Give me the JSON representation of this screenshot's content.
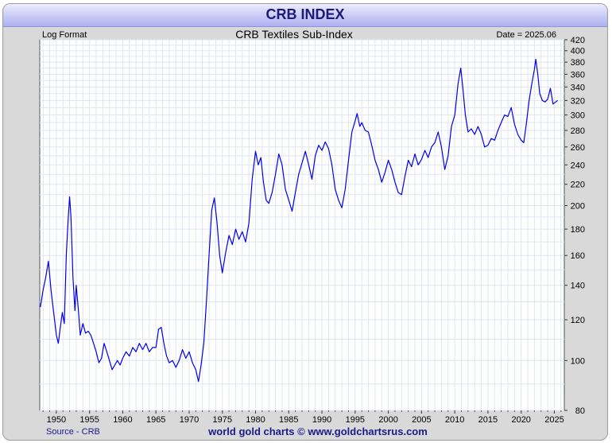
{
  "header": {
    "title": "CRB INDEX"
  },
  "chart_meta": {
    "format_label": "Log Format",
    "date_label": "Date = 2025.06",
    "source_label": "Source - CRB",
    "footer_credit": "world gold charts © www.goldchartsrus.com"
  },
  "colors": {
    "line": "#0000ee",
    "banner_text": "#1a1a7a",
    "footer_text": "#1a1a8a",
    "grid": "#dfe6f2",
    "frame": "#d9d9d9"
  },
  "chart_data": {
    "type": "line",
    "title": "CRB Textiles Sub-Index",
    "scale": "log",
    "grid": true,
    "xlim": [
      1947.5,
      2026.5
    ],
    "ylim": [
      80,
      420
    ],
    "x_ticks": [
      1950,
      1955,
      1960,
      1965,
      1970,
      1975,
      1980,
      1985,
      1990,
      1995,
      2000,
      2005,
      2010,
      2015,
      2020,
      2025
    ],
    "y_ticks": [
      80,
      100,
      120,
      140,
      160,
      180,
      200,
      220,
      240,
      260,
      280,
      300,
      320,
      340,
      360,
      380,
      400,
      420
    ],
    "series": [
      {
        "points": [
          [
            1947.6,
            127
          ],
          [
            1948.0,
            137
          ],
          [
            1948.4,
            145
          ],
          [
            1948.8,
            156
          ],
          [
            1949.2,
            137
          ],
          [
            1949.6,
            124
          ],
          [
            1950.0,
            112
          ],
          [
            1950.3,
            108
          ],
          [
            1950.6,
            116
          ],
          [
            1950.9,
            124
          ],
          [
            1951.2,
            118
          ],
          [
            1951.5,
            160
          ],
          [
            1951.8,
            190
          ],
          [
            1952.0,
            208
          ],
          [
            1952.2,
            190
          ],
          [
            1952.5,
            145
          ],
          [
            1952.8,
            125
          ],
          [
            1953.0,
            140
          ],
          [
            1953.3,
            126
          ],
          [
            1953.6,
            112
          ],
          [
            1954.0,
            118
          ],
          [
            1954.4,
            113
          ],
          [
            1954.8,
            114
          ],
          [
            1955.2,
            112
          ],
          [
            1955.6,
            108
          ],
          [
            1956.0,
            104
          ],
          [
            1956.4,
            99
          ],
          [
            1956.8,
            101
          ],
          [
            1957.2,
            108
          ],
          [
            1957.6,
            104
          ],
          [
            1958.0,
            100
          ],
          [
            1958.4,
            96
          ],
          [
            1958.8,
            98
          ],
          [
            1959.2,
            100
          ],
          [
            1959.6,
            98
          ],
          [
            1960.0,
            101
          ],
          [
            1960.5,
            104
          ],
          [
            1961.0,
            102
          ],
          [
            1961.5,
            106
          ],
          [
            1962.0,
            104
          ],
          [
            1962.5,
            108
          ],
          [
            1963.0,
            105
          ],
          [
            1963.5,
            108
          ],
          [
            1964.0,
            104
          ],
          [
            1964.5,
            106
          ],
          [
            1965.0,
            106
          ],
          [
            1965.4,
            115
          ],
          [
            1965.8,
            116
          ],
          [
            1966.2,
            108
          ],
          [
            1966.6,
            102
          ],
          [
            1967.0,
            99
          ],
          [
            1967.5,
            100
          ],
          [
            1968.0,
            97
          ],
          [
            1968.5,
            100
          ],
          [
            1969.0,
            105
          ],
          [
            1969.5,
            101
          ],
          [
            1970.0,
            104
          ],
          [
            1970.5,
            99
          ],
          [
            1971.0,
            96
          ],
          [
            1971.4,
            91
          ],
          [
            1971.8,
            98
          ],
          [
            1972.2,
            108
          ],
          [
            1972.6,
            130
          ],
          [
            1973.0,
            160
          ],
          [
            1973.4,
            196
          ],
          [
            1973.8,
            207
          ],
          [
            1974.2,
            185
          ],
          [
            1974.6,
            160
          ],
          [
            1975.0,
            148
          ],
          [
            1975.5,
            162
          ],
          [
            1976.0,
            175
          ],
          [
            1976.5,
            168
          ],
          [
            1977.0,
            180
          ],
          [
            1977.5,
            172
          ],
          [
            1978.0,
            178
          ],
          [
            1978.5,
            170
          ],
          [
            1979.0,
            185
          ],
          [
            1979.5,
            225
          ],
          [
            1980.0,
            255
          ],
          [
            1980.4,
            240
          ],
          [
            1980.8,
            248
          ],
          [
            1981.2,
            222
          ],
          [
            1981.6,
            205
          ],
          [
            1982.0,
            202
          ],
          [
            1982.5,
            212
          ],
          [
            1983.0,
            230
          ],
          [
            1983.5,
            252
          ],
          [
            1984.0,
            240
          ],
          [
            1984.5,
            215
          ],
          [
            1985.0,
            205
          ],
          [
            1985.5,
            195
          ],
          [
            1986.0,
            212
          ],
          [
            1986.5,
            230
          ],
          [
            1987.0,
            242
          ],
          [
            1987.5,
            255
          ],
          [
            1988.0,
            240
          ],
          [
            1988.5,
            225
          ],
          [
            1989.0,
            250
          ],
          [
            1989.5,
            262
          ],
          [
            1990.0,
            256
          ],
          [
            1990.5,
            266
          ],
          [
            1991.0,
            258
          ],
          [
            1991.5,
            240
          ],
          [
            1992.0,
            215
          ],
          [
            1992.5,
            205
          ],
          [
            1993.0,
            198
          ],
          [
            1993.5,
            215
          ],
          [
            1994.0,
            245
          ],
          [
            1994.5,
            278
          ],
          [
            1995.0,
            292
          ],
          [
            1995.3,
            302
          ],
          [
            1995.7,
            285
          ],
          [
            1996.0,
            290
          ],
          [
            1996.5,
            280
          ],
          [
            1997.0,
            278
          ],
          [
            1997.5,
            262
          ],
          [
            1998.0,
            245
          ],
          [
            1998.5,
            235
          ],
          [
            1999.0,
            222
          ],
          [
            1999.5,
            232
          ],
          [
            2000.0,
            245
          ],
          [
            2000.5,
            235
          ],
          [
            2001.0,
            222
          ],
          [
            2001.5,
            212
          ],
          [
            2002.0,
            210
          ],
          [
            2002.5,
            228
          ],
          [
            2003.0,
            245
          ],
          [
            2003.5,
            238
          ],
          [
            2004.0,
            252
          ],
          [
            2004.5,
            240
          ],
          [
            2005.0,
            246
          ],
          [
            2005.5,
            256
          ],
          [
            2006.0,
            248
          ],
          [
            2006.5,
            260
          ],
          [
            2007.0,
            265
          ],
          [
            2007.5,
            278
          ],
          [
            2008.0,
            260
          ],
          [
            2008.5,
            235
          ],
          [
            2009.0,
            250
          ],
          [
            2009.5,
            285
          ],
          [
            2010.0,
            300
          ],
          [
            2010.5,
            345
          ],
          [
            2010.9,
            370
          ],
          [
            2011.2,
            340
          ],
          [
            2011.6,
            300
          ],
          [
            2012.0,
            278
          ],
          [
            2012.5,
            282
          ],
          [
            2013.0,
            275
          ],
          [
            2013.5,
            285
          ],
          [
            2014.0,
            275
          ],
          [
            2014.5,
            260
          ],
          [
            2015.0,
            262
          ],
          [
            2015.5,
            270
          ],
          [
            2016.0,
            268
          ],
          [
            2016.5,
            280
          ],
          [
            2017.0,
            290
          ],
          [
            2017.5,
            300
          ],
          [
            2018.0,
            298
          ],
          [
            2018.5,
            310
          ],
          [
            2019.0,
            288
          ],
          [
            2019.5,
            275
          ],
          [
            2020.0,
            268
          ],
          [
            2020.4,
            265
          ],
          [
            2020.8,
            290
          ],
          [
            2021.2,
            320
          ],
          [
            2021.6,
            345
          ],
          [
            2022.0,
            368
          ],
          [
            2022.2,
            385
          ],
          [
            2022.5,
            360
          ],
          [
            2022.8,
            330
          ],
          [
            2023.2,
            320
          ],
          [
            2023.6,
            318
          ],
          [
            2024.0,
            322
          ],
          [
            2024.4,
            338
          ],
          [
            2024.8,
            315
          ],
          [
            2025.2,
            318
          ],
          [
            2025.5,
            320
          ]
        ]
      }
    ]
  }
}
